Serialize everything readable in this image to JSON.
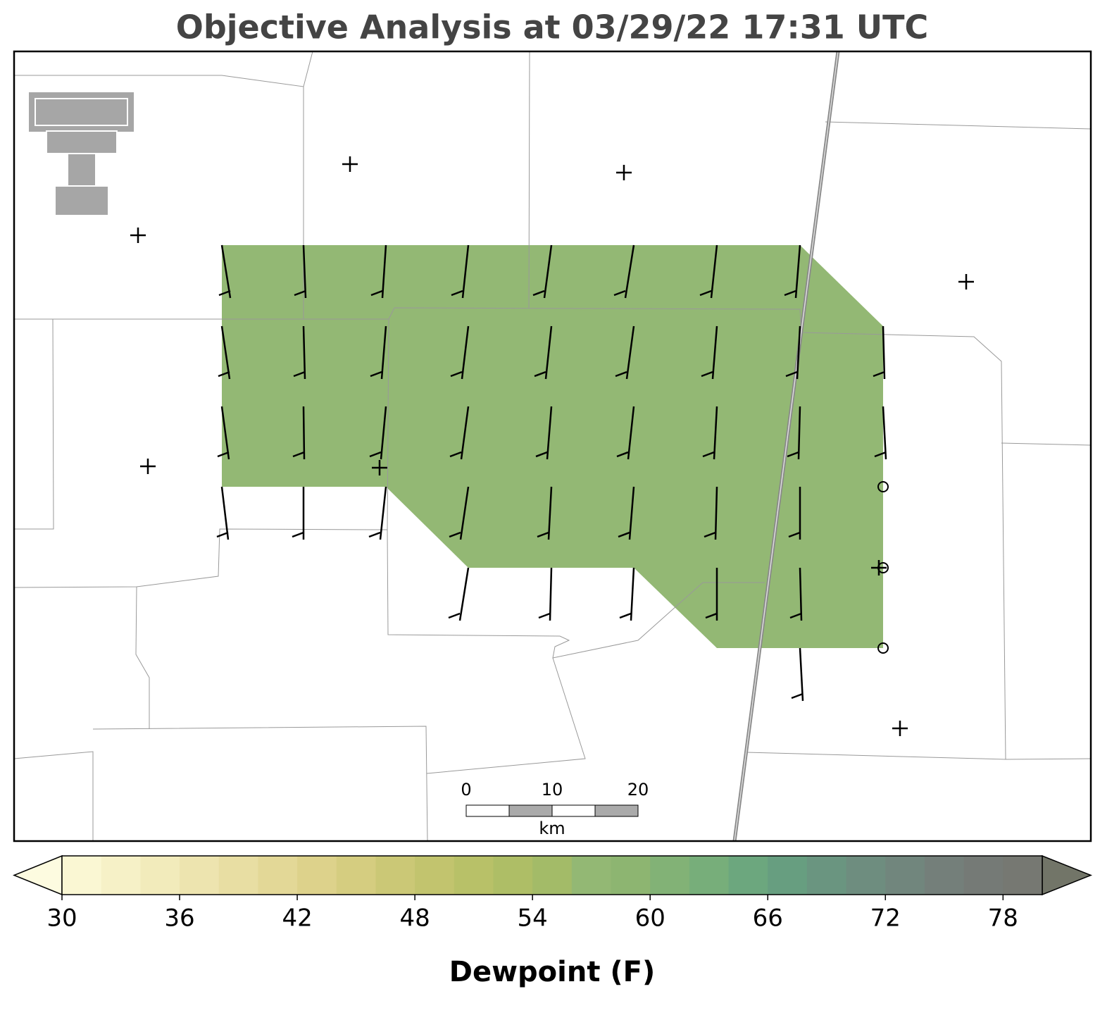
{
  "chart_data": {
    "type": "contour-map",
    "title": "Objective Analysis at 03/29/22 17:31 UTC",
    "field_value": 57,
    "colorbar": {
      "label": "Dewpoint (F)",
      "lim": [
        30,
        80
      ],
      "ticks": [
        30,
        36,
        42,
        48,
        54,
        60,
        66,
        72,
        78
      ],
      "colors": [
        "#faf7d3",
        "#f6f1c7",
        "#f2ebbb",
        "#ede4af",
        "#e8dea3",
        "#e3d897",
        "#ddd28b",
        "#d5cd80",
        "#cbc876",
        "#c2c46e",
        "#b8c168",
        "#aebe66",
        "#a3bb68",
        "#93b874",
        "#8db571",
        "#82b276",
        "#77ae7a",
        "#6ca77e",
        "#679e80",
        "#6a9580",
        "#6e8d7f",
        "#71867d",
        "#747f7a",
        "#757a76",
        "#767872"
      ],
      "under_color": "#fdfbe0",
      "over_color": "#727568"
    },
    "scale_bar": {
      "ticks": [
        0,
        10,
        20
      ],
      "unit": "km"
    }
  }
}
